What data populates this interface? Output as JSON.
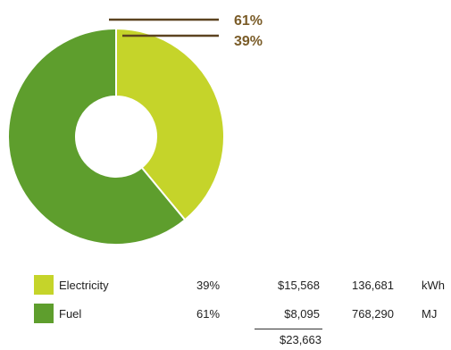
{
  "chart_data": {
    "type": "pie",
    "donut": true,
    "slices": [
      {
        "label": "Electricity",
        "percent": 39,
        "percent_label": "39%",
        "cost": "$15,568",
        "quantity": "136,681",
        "unit": "kWh",
        "color": "#c5d42a"
      },
      {
        "label": "Fuel",
        "percent": 61,
        "percent_label": "61%",
        "cost": "$8,095",
        "quantity": "768,290",
        "unit": "MJ",
        "color": "#5e9e2d"
      }
    ],
    "callouts": [
      "61%",
      "39%"
    ],
    "total": "$23,663",
    "colors": {
      "callout_text": "#7a5c28",
      "leader_line": "#5c4320",
      "slice_edge": "#ffffff"
    }
  }
}
